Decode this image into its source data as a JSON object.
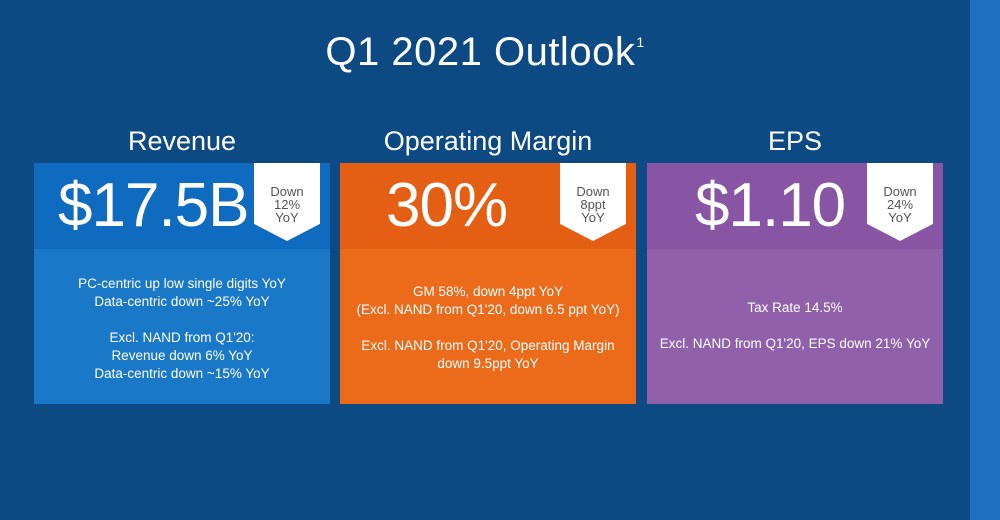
{
  "title": "Q1 2021 Outlook",
  "title_footnote": "1",
  "columns": [
    {
      "heading": "Revenue",
      "value": "$17.5B",
      "change": [
        "Down",
        "12%",
        "YoY"
      ],
      "lines": [
        "PC-centric up low single digits YoY",
        "Data-centric down ~25% YoY",
        "",
        "Excl. NAND from Q1'20:",
        "Revenue down 6% YoY",
        "Data-centric down ~15% YoY"
      ],
      "colors": {
        "top": "#0e6bc0",
        "bottom": "#1a78c8"
      }
    },
    {
      "heading": "Operating Margin",
      "value": "30%",
      "change": [
        "Down",
        "8ppt",
        "YoY"
      ],
      "lines": [
        "GM 58%, down 4ppt YoY",
        "(Excl. NAND from Q1'20, down 6.5 ppt YoY)",
        "",
        "Excl. NAND from Q1'20, Operating Margin",
        "down 9.5ppt YoY"
      ],
      "colors": {
        "top": "#e45e14",
        "bottom": "#ec6b1b"
      }
    },
    {
      "heading": "EPS",
      "value": "$1.10",
      "change": [
        "Down",
        "24%",
        "YoY"
      ],
      "lines": [
        "Tax Rate 14.5%",
        "",
        "Excl. NAND from Q1'20, EPS down 21% YoY"
      ],
      "colors": {
        "top": "#8755a3",
        "bottom": "#9160ab"
      }
    }
  ],
  "colors": {
    "background": "#0d4a84",
    "strip": "#1f6fc0",
    "flag": "#ffffff"
  }
}
